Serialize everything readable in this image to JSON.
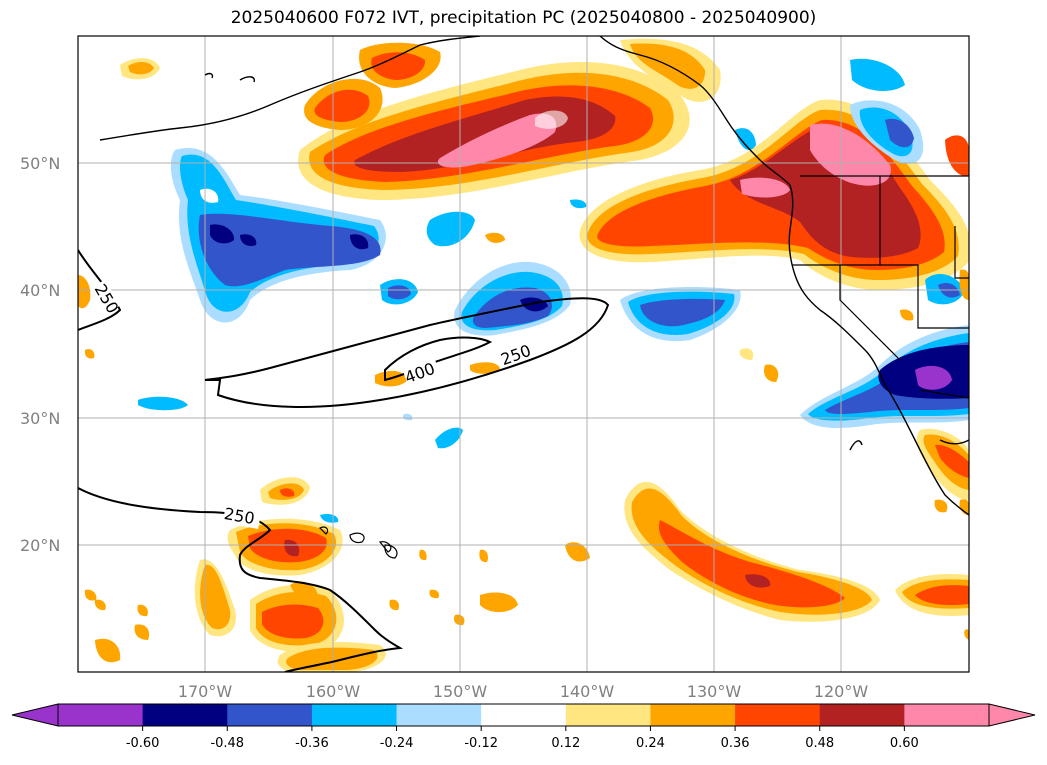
{
  "title": "2025040600 F072 IVT, precipitation PC (2025040800 - 2025040900)",
  "lat_labels": [
    "50°N",
    "40°N",
    "30°N",
    "20°N"
  ],
  "lon_labels": [
    "170°W",
    "160°W",
    "150°W",
    "140°W",
    "130°W",
    "120°W"
  ],
  "contour_labels": [
    "250",
    "400",
    "250",
    "250"
  ],
  "colorbar": {
    "ticks": [
      "-0.60",
      "-0.48",
      "-0.36",
      "-0.24",
      "-0.12",
      "0.12",
      "0.24",
      "0.36",
      "0.48",
      "0.60"
    ],
    "colors": [
      "#9933cc",
      "#000080",
      "#3355cc",
      "#00bbff",
      "#aaddff",
      "#ffffff",
      "#ffe680",
      "#ffa500",
      "#ff4500",
      "#b22222",
      "#ff88aa"
    ]
  }
}
